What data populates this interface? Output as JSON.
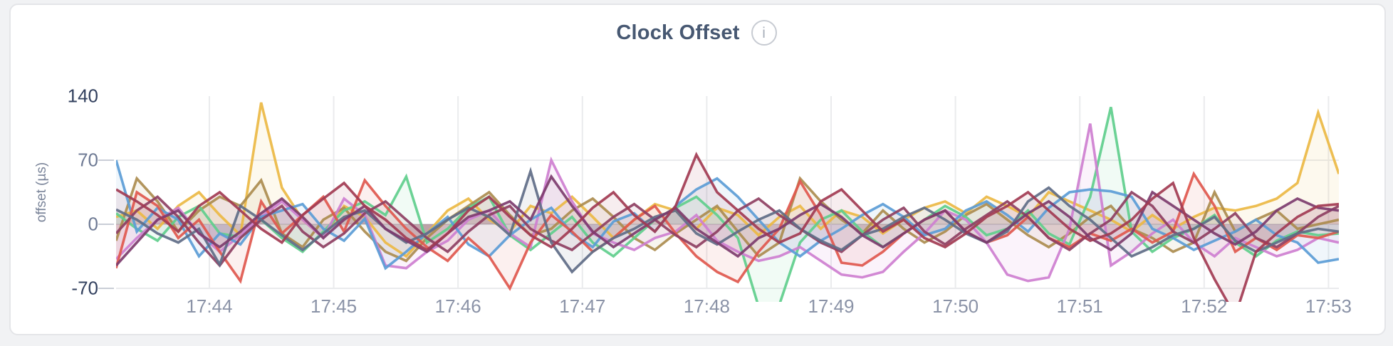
{
  "page": {
    "background": "#f1f2f4"
  },
  "card": {
    "background": "#ffffff",
    "border_color": "#e4e5e8"
  },
  "header": {
    "title": "Clock Offset",
    "info_glyph": "i"
  },
  "chart_data": {
    "type": "line",
    "title": "Clock Offset",
    "xlabel": "",
    "ylabel": "offset (µs)",
    "grid": true,
    "legend_position": "none",
    "y_ticks": [
      140,
      70,
      0,
      -70
    ],
    "ylim": [
      -85,
      167
    ],
    "x_ticks": [
      {
        "t": 1,
        "label": "17:44"
      },
      {
        "t": 2,
        "label": "17:45"
      },
      {
        "t": 3,
        "label": "17:46"
      },
      {
        "t": 4,
        "label": "17:47"
      },
      {
        "t": 5,
        "label": "17:48"
      },
      {
        "t": 6,
        "label": "17:49"
      },
      {
        "t": 7,
        "label": "17:50"
      },
      {
        "t": 8,
        "label": "17:51"
      },
      {
        "t": 9,
        "label": "17:52"
      },
      {
        "t": 10,
        "label": "17:53"
      }
    ],
    "x_start_min": 0.25,
    "x_step_min": 0.166667,
    "point_count": 60,
    "series": [
      {
        "name": "gold",
        "color": "#EBB844",
        "values": [
          8,
          15,
          -5,
          20,
          35,
          10,
          -12,
          133,
          40,
          5,
          -15,
          20,
          8,
          -20,
          -35,
          -10,
          15,
          28,
          5,
          -8,
          20,
          12,
          30,
          8,
          -15,
          5,
          22,
          15,
          -5,
          18,
          10,
          -12,
          8,
          20,
          -5,
          15,
          8,
          -10,
          5,
          18,
          25,
          12,
          30,
          20,
          8,
          35,
          25,
          15,
          5,
          -8,
          10,
          -5,
          8,
          18,
          15,
          20,
          28,
          45,
          122,
          55
        ]
      },
      {
        "name": "khaki",
        "color": "#AB8C4F",
        "values": [
          -18,
          50,
          25,
          -8,
          15,
          30,
          20,
          48,
          -10,
          -25,
          5,
          18,
          -8,
          -30,
          -40,
          -15,
          5,
          20,
          35,
          10,
          -12,
          -5,
          15,
          28,
          8,
          -15,
          -28,
          -10,
          5,
          20,
          -8,
          -35,
          -20,
          50,
          25,
          5,
          -10,
          15,
          -5,
          -20,
          -8,
          10,
          22,
          5,
          -12,
          -25,
          -10,
          8,
          20,
          -5,
          -15,
          -30,
          -20,
          35,
          -8,
          5,
          15,
          -5,
          0,
          5
        ]
      },
      {
        "name": "green",
        "color": "#5FCE8C",
        "values": [
          12,
          -5,
          -18,
          8,
          20,
          -10,
          -14,
          5,
          -15,
          -30,
          -8,
          15,
          25,
          10,
          52,
          -20,
          -5,
          18,
          30,
          -12,
          -28,
          -10,
          8,
          -20,
          -35,
          -15,
          5,
          18,
          30,
          10,
          -15,
          -90,
          -88,
          -20,
          5,
          15,
          -8,
          -25,
          -10,
          5,
          20,
          8,
          -12,
          -5,
          15,
          -10,
          -22,
          30,
          128,
          -8,
          -30,
          -15,
          -5,
          10,
          -20,
          -35,
          -18,
          -8,
          -12,
          -10
        ]
      },
      {
        "name": "orchid",
        "color": "#CE7FD0",
        "values": [
          -38,
          -15,
          5,
          18,
          -10,
          -30,
          -12,
          8,
          25,
          5,
          -15,
          28,
          10,
          -45,
          -48,
          -30,
          -18,
          5,
          15,
          -10,
          -25,
          70,
          25,
          -10,
          -20,
          -28,
          -15,
          -8,
          10,
          -18,
          -30,
          -40,
          -35,
          -25,
          -40,
          -55,
          -58,
          -52,
          -30,
          -10,
          15,
          5,
          -20,
          -55,
          -62,
          -58,
          -5,
          110,
          -45,
          -30,
          -10,
          5,
          -20,
          -35,
          -15,
          -25,
          -35,
          -28,
          -15,
          -20
        ]
      },
      {
        "name": "blue",
        "color": "#5B9CD6",
        "values": [
          70,
          -8,
          18,
          5,
          -35,
          -10,
          -22,
          8,
          15,
          22,
          -5,
          -18,
          6,
          -48,
          -30,
          -10,
          8,
          -22,
          -35,
          -12,
          5,
          18,
          -10,
          -25,
          3,
          12,
          -8,
          20,
          38,
          50,
          30,
          5,
          -20,
          -35,
          -18,
          -5,
          10,
          22,
          8,
          -12,
          -5,
          15,
          25,
          10,
          -8,
          18,
          35,
          38,
          36,
          30,
          -5,
          -15,
          -28,
          -18,
          -8,
          5,
          -12,
          -20,
          -42,
          -38
        ]
      },
      {
        "name": "red",
        "color": "#E0584E",
        "values": [
          -48,
          35,
          20,
          -15,
          5,
          -30,
          -62,
          25,
          -10,
          10,
          30,
          -8,
          48,
          20,
          -5,
          -25,
          -40,
          -15,
          -35,
          -70,
          -20,
          10,
          -8,
          -30,
          -15,
          5,
          20,
          -10,
          -35,
          -52,
          -63,
          -30,
          -5,
          47,
          10,
          -42,
          -45,
          -30,
          -10,
          5,
          15,
          -8,
          -20,
          -12,
          8,
          -15,
          -25,
          -10,
          -18,
          -5,
          -20,
          -8,
          55,
          20,
          -30,
          -15,
          -28,
          -12,
          -15,
          -8
        ]
      },
      {
        "name": "wine",
        "color": "#8E3F62",
        "values": [
          -10,
          15,
          30,
          8,
          -20,
          -45,
          -15,
          5,
          20,
          -8,
          -25,
          -10,
          12,
          25,
          5,
          -15,
          -30,
          -8,
          10,
          20,
          -5,
          -18,
          -28,
          -10,
          8,
          22,
          5,
          -12,
          -25,
          -8,
          15,
          28,
          10,
          -5,
          -20,
          -30,
          -12,
          5,
          18,
          -8,
          -22,
          -5,
          10,
          25,
          8,
          -15,
          -28,
          -10,
          5,
          35,
          20,
          -8,
          -20,
          -5,
          12,
          -15,
          -25,
          -10,
          8,
          20
        ]
      },
      {
        "name": "slate",
        "color": "#5F6C87",
        "values": [
          16,
          5,
          -10,
          -20,
          -5,
          -44,
          20,
          5,
          -12,
          -28,
          -10,
          8,
          15,
          -5,
          -20,
          -10,
          5,
          18,
          8,
          -12,
          58,
          -20,
          -52,
          -30,
          -15,
          -5,
          8,
          15,
          -10,
          -22,
          -8,
          5,
          15,
          -5,
          -18,
          -28,
          -12,
          -5,
          8,
          18,
          5,
          -10,
          -20,
          -8,
          25,
          40,
          20,
          5,
          -15,
          -35,
          -25,
          -12,
          -5,
          8,
          -18,
          -30,
          -20,
          -10,
          -5,
          -8
        ]
      },
      {
        "name": "plum",
        "color": "#7D3C6E",
        "values": [
          -45,
          -20,
          5,
          15,
          -10,
          -25,
          -8,
          12,
          28,
          8,
          -15,
          5,
          20,
          -5,
          -18,
          -30,
          -10,
          8,
          15,
          25,
          5,
          52,
          20,
          -8,
          -25,
          -10,
          5,
          18,
          -5,
          -20,
          -35,
          -15,
          -5,
          10,
          22,
          8,
          -12,
          -25,
          -10,
          5,
          15,
          -8,
          -20,
          -5,
          12,
          25,
          8,
          -15,
          -28,
          -10,
          35,
          20,
          5,
          -10,
          -22,
          -8,
          15,
          28,
          18,
          15
        ]
      },
      {
        "name": "maroon",
        "color": "#A23B52",
        "values": [
          38,
          25,
          10,
          -8,
          20,
          35,
          15,
          -5,
          -20,
          10,
          28,
          45,
          20,
          5,
          -15,
          -28,
          -10,
          15,
          30,
          8,
          -12,
          -25,
          -5,
          18,
          35,
          10,
          -8,
          20,
          76,
          35,
          15,
          -5,
          -20,
          -10,
          25,
          38,
          15,
          -8,
          5,
          -15,
          -25,
          -10,
          8,
          20,
          35,
          15,
          -5,
          -18,
          -10,
          5,
          28,
          45,
          -15,
          -60,
          -100,
          -30,
          -10,
          8,
          20,
          22
        ]
      }
    ],
    "style": {
      "line_width": 3.6,
      "line_opacity": 0.92,
      "fill_opacity": 0.09,
      "grid_color": "#eaebed",
      "zero_line_color": "#dfe1e4",
      "tick_mark_color": "#c9cdd6"
    }
  }
}
